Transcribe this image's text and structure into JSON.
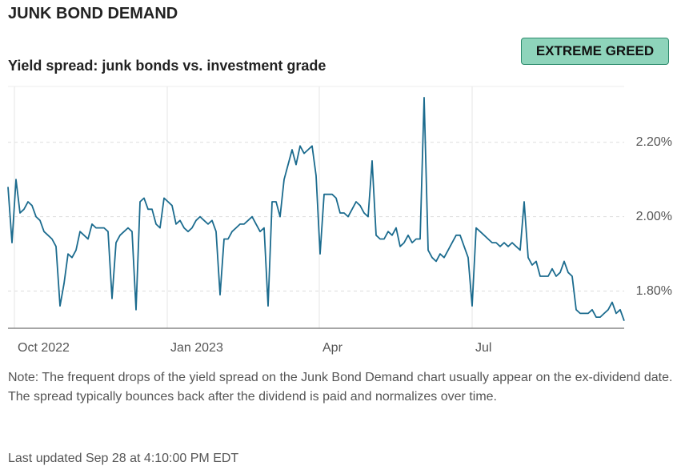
{
  "header": {
    "title": "JUNK BOND DEMAND",
    "badge": "EXTREME GREED"
  },
  "chart_data": {
    "type": "line",
    "subtitle": "Yield spread: junk bonds vs. investment grade",
    "series": [
      {
        "name": "Yield spread",
        "color": "#1b6b8e",
        "values": [
          2.08,
          1.93,
          2.1,
          2.01,
          2.02,
          2.04,
          2.03,
          2.0,
          1.99,
          1.96,
          1.95,
          1.94,
          1.92,
          1.76,
          1.82,
          1.9,
          1.89,
          1.91,
          1.96,
          1.95,
          1.94,
          1.98,
          1.97,
          1.97,
          1.97,
          1.96,
          1.78,
          1.93,
          1.95,
          1.96,
          1.97,
          1.96,
          1.75,
          2.04,
          2.05,
          2.02,
          2.02,
          1.98,
          1.97,
          2.05,
          2.04,
          2.03,
          1.98,
          1.99,
          1.97,
          1.96,
          1.97,
          1.99,
          2.0,
          1.99,
          1.98,
          1.99,
          1.96,
          1.79,
          1.94,
          1.94,
          1.96,
          1.97,
          1.98,
          1.98,
          1.99,
          2.0,
          1.98,
          1.96,
          1.97,
          1.76,
          2.04,
          2.04,
          2.0,
          2.1,
          2.14,
          2.18,
          2.14,
          2.19,
          2.17,
          2.18,
          2.19,
          2.11,
          1.9,
          2.06,
          2.06,
          2.06,
          2.05,
          2.01,
          2.01,
          2.0,
          2.02,
          2.04,
          2.03,
          2.01,
          2.0,
          2.15,
          1.95,
          1.94,
          1.94,
          1.96,
          1.95,
          1.97,
          1.92,
          1.93,
          1.95,
          1.93,
          1.94,
          1.94,
          2.32,
          1.91,
          1.89,
          1.88,
          1.9,
          1.89,
          1.91,
          1.93,
          1.95,
          1.95,
          1.92,
          1.89,
          1.76,
          1.97,
          1.96,
          1.95,
          1.94,
          1.93,
          1.93,
          1.92,
          1.93,
          1.92,
          1.93,
          1.92,
          1.91,
          2.04,
          1.89,
          1.87,
          1.88,
          1.84,
          1.84,
          1.84,
          1.86,
          1.84,
          1.85,
          1.88,
          1.85,
          1.84,
          1.75,
          1.74,
          1.74,
          1.74,
          1.75,
          1.73,
          1.73,
          1.74,
          1.75,
          1.77,
          1.74,
          1.75,
          1.72
        ]
      }
    ],
    "xlim": [
      0,
      154
    ],
    "xticks": [
      {
        "value": 1.6,
        "label": "Oct 2022"
      },
      {
        "value": 39.8,
        "label": "Jan 2023"
      },
      {
        "value": 77.8,
        "label": "Apr"
      },
      {
        "value": 116,
        "label": "Jul"
      }
    ],
    "ylim": [
      1.7,
      2.35
    ],
    "yticks": [
      {
        "value": 1.8,
        "label": "1.80%"
      },
      {
        "value": 2.0,
        "label": "2.00%"
      },
      {
        "value": 2.2,
        "label": "2.20%"
      }
    ],
    "grid": true
  },
  "note": "Note: The frequent drops of the yield spread on the Junk Bond Demand chart usually appear on the ex-dividend date. The spread typically bounces back after the dividend is paid and normalizes over time.",
  "footer": "Last updated Sep 28 at 4:10:00 PM EDT"
}
